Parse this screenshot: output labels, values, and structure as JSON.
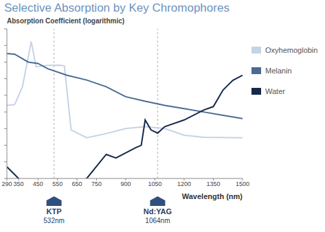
{
  "chart_data": {
    "type": "line",
    "title": "Selective Absorption by Key Chromophores",
    "y_label": "Absorption Coefficient (logarithmic)",
    "x_label": "Wavelength (nm)",
    "log": "y",
    "grid": false,
    "legend": "right",
    "tick_labels": "x",
    "xlim": [
      290,
      1500
    ],
    "xticks": [
      290,
      350,
      450,
      550,
      650,
      750,
      900,
      1050,
      1200,
      1350,
      1500
    ],
    "ylim": [
      0.0001,
      100000
    ],
    "yticks": [
      0.0001,
      0.001,
      0.01,
      0.1,
      1,
      10,
      100,
      1000,
      10000,
      100000
    ],
    "series": [
      {
        "name": "Oxyhemoglobin",
        "color": "#c5d3e6",
        "x": [
          290,
          330,
          370,
          415,
          440,
          500,
          560,
          585,
          620,
          700,
          800,
          900,
          1000,
          1100,
          1200,
          1300,
          1500
        ],
        "values": [
          2.5,
          2.8,
          33,
          17000,
          525,
          630,
          650,
          600,
          0.083,
          0.028,
          0.05,
          0.1,
          0.13,
          0.1,
          0.04,
          0.03,
          0.028
        ]
      },
      {
        "name": "Melanin",
        "color": "#4a6a94",
        "x": [
          290,
          330,
          400,
          450,
          500,
          600,
          700,
          800,
          900,
          1000,
          1100,
          1200,
          1300,
          1400,
          1500
        ],
        "values": [
          3300,
          3000,
          1000,
          830,
          400,
          160,
          83,
          33,
          8.3,
          4.4,
          2.5,
          1.6,
          1,
          0.63,
          0.4
        ]
      },
      {
        "name": "Water",
        "color": "#16284a",
        "x": [
          290,
          350,
          400,
          500,
          600,
          700,
          800,
          850,
          950,
          980,
          1000,
          1030,
          1064,
          1100,
          1200,
          1300,
          1350,
          1400,
          1450,
          1500
        ],
        "values": [
          0.0005,
          0.0001,
          4e-05,
          2e-05,
          3e-05,
          0.0001,
          0.0028,
          0.0017,
          0.0069,
          0.01,
          0.33,
          0.083,
          0.053,
          0.13,
          0.33,
          1.3,
          2.1,
          21,
          80,
          160
        ]
      }
    ],
    "annotations": [
      {
        "x": 532,
        "label": "KTP",
        "text": "532nm"
      },
      {
        "x": 1064,
        "label": "Nd:YAG",
        "text": "1064nm"
      }
    ]
  }
}
